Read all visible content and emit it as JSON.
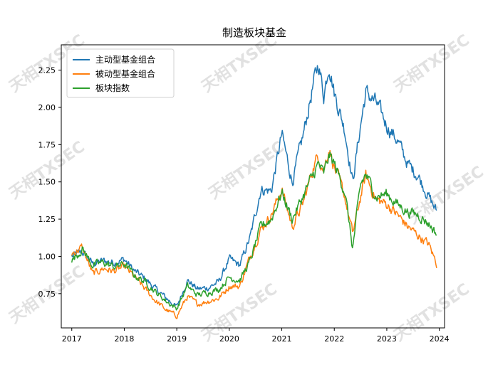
{
  "chart_data": {
    "type": "line",
    "title": "制造板块基金",
    "xlabel": "",
    "ylabel": "",
    "xlim": [
      2016.8,
      2024.1
    ],
    "ylim": [
      0.52,
      2.42
    ],
    "x_ticks": [
      2017,
      2018,
      2019,
      2020,
      2021,
      2022,
      2023,
      2024
    ],
    "x_tick_labels": [
      "2017",
      "2018",
      "2019",
      "2020",
      "2021",
      "2022",
      "2023",
      "2024"
    ],
    "y_ticks": [
      0.75,
      1.0,
      1.25,
      1.5,
      1.75,
      2.0,
      2.25
    ],
    "y_tick_labels": [
      "0.75",
      "1.00",
      "1.25",
      "1.50",
      "1.75",
      "2.00",
      "2.25"
    ],
    "grid": false,
    "legend_position": "upper-left",
    "series": [
      {
        "name": "主动型基金组合",
        "color": "#1f77b4",
        "points": [
          [
            2017.0,
            1.0
          ],
          [
            2017.2,
            1.03
          ],
          [
            2017.4,
            0.95
          ],
          [
            2017.6,
            0.97
          ],
          [
            2017.8,
            0.96
          ],
          [
            2018.0,
            0.98
          ],
          [
            2018.2,
            0.9
          ],
          [
            2018.4,
            0.85
          ],
          [
            2018.6,
            0.78
          ],
          [
            2018.8,
            0.72
          ],
          [
            2019.0,
            0.66
          ],
          [
            2019.2,
            0.84
          ],
          [
            2019.4,
            0.78
          ],
          [
            2019.6,
            0.79
          ],
          [
            2019.8,
            0.83
          ],
          [
            2020.0,
            0.98
          ],
          [
            2020.2,
            0.94
          ],
          [
            2020.4,
            1.13
          ],
          [
            2020.6,
            1.45
          ],
          [
            2020.8,
            1.44
          ],
          [
            2021.0,
            1.82
          ],
          [
            2021.2,
            1.5
          ],
          [
            2021.4,
            1.8
          ],
          [
            2021.6,
            2.15
          ],
          [
            2021.7,
            2.3
          ],
          [
            2021.8,
            2.08
          ],
          [
            2021.9,
            2.3
          ],
          [
            2022.0,
            2.1
          ],
          [
            2022.2,
            1.85
          ],
          [
            2022.35,
            1.5
          ],
          [
            2022.5,
            1.88
          ],
          [
            2022.6,
            2.1
          ],
          [
            2022.8,
            2.03
          ],
          [
            2023.0,
            1.88
          ],
          [
            2023.2,
            1.78
          ],
          [
            2023.4,
            1.62
          ],
          [
            2023.6,
            1.54
          ],
          [
            2023.8,
            1.4
          ],
          [
            2023.95,
            1.3
          ]
        ]
      },
      {
        "name": "被动型基金组合",
        "color": "#ff7f0e",
        "points": [
          [
            2017.0,
            1.02
          ],
          [
            2017.2,
            1.06
          ],
          [
            2017.4,
            0.88
          ],
          [
            2017.6,
            0.92
          ],
          [
            2017.8,
            0.9
          ],
          [
            2018.0,
            0.93
          ],
          [
            2018.2,
            0.86
          ],
          [
            2018.4,
            0.78
          ],
          [
            2018.6,
            0.7
          ],
          [
            2018.8,
            0.64
          ],
          [
            2019.0,
            0.6
          ],
          [
            2019.2,
            0.73
          ],
          [
            2019.4,
            0.68
          ],
          [
            2019.6,
            0.7
          ],
          [
            2019.8,
            0.72
          ],
          [
            2020.0,
            0.8
          ],
          [
            2020.2,
            0.8
          ],
          [
            2020.4,
            1.0
          ],
          [
            2020.6,
            1.18
          ],
          [
            2020.8,
            1.28
          ],
          [
            2021.0,
            1.45
          ],
          [
            2021.2,
            1.2
          ],
          [
            2021.4,
            1.35
          ],
          [
            2021.6,
            1.6
          ],
          [
            2021.7,
            1.68
          ],
          [
            2021.8,
            1.58
          ],
          [
            2021.9,
            1.73
          ],
          [
            2022.0,
            1.6
          ],
          [
            2022.2,
            1.4
          ],
          [
            2022.35,
            1.15
          ],
          [
            2022.5,
            1.4
          ],
          [
            2022.6,
            1.54
          ],
          [
            2022.8,
            1.38
          ],
          [
            2023.0,
            1.35
          ],
          [
            2023.2,
            1.28
          ],
          [
            2023.4,
            1.2
          ],
          [
            2023.6,
            1.14
          ],
          [
            2023.8,
            1.08
          ],
          [
            2023.95,
            0.95
          ]
        ]
      },
      {
        "name": "板块指数",
        "color": "#2ca02c",
        "points": [
          [
            2017.0,
            0.97
          ],
          [
            2017.2,
            1.05
          ],
          [
            2017.4,
            0.94
          ],
          [
            2017.6,
            0.96
          ],
          [
            2017.8,
            0.93
          ],
          [
            2018.0,
            0.95
          ],
          [
            2018.2,
            0.87
          ],
          [
            2018.4,
            0.83
          ],
          [
            2018.6,
            0.76
          ],
          [
            2018.8,
            0.7
          ],
          [
            2019.0,
            0.65
          ],
          [
            2019.2,
            0.8
          ],
          [
            2019.4,
            0.74
          ],
          [
            2019.6,
            0.76
          ],
          [
            2019.8,
            0.78
          ],
          [
            2020.0,
            0.86
          ],
          [
            2020.2,
            0.84
          ],
          [
            2020.4,
            0.97
          ],
          [
            2020.6,
            1.2
          ],
          [
            2020.8,
            1.25
          ],
          [
            2021.0,
            1.43
          ],
          [
            2021.2,
            1.25
          ],
          [
            2021.4,
            1.4
          ],
          [
            2021.6,
            1.55
          ],
          [
            2021.7,
            1.62
          ],
          [
            2021.8,
            1.55
          ],
          [
            2021.9,
            1.68
          ],
          [
            2022.0,
            1.62
          ],
          [
            2022.2,
            1.44
          ],
          [
            2022.35,
            1.05
          ],
          [
            2022.5,
            1.48
          ],
          [
            2022.6,
            1.55
          ],
          [
            2022.8,
            1.4
          ],
          [
            2023.0,
            1.42
          ],
          [
            2023.2,
            1.35
          ],
          [
            2023.4,
            1.3
          ],
          [
            2023.6,
            1.28
          ],
          [
            2023.8,
            1.22
          ],
          [
            2023.95,
            1.15
          ]
        ]
      }
    ],
    "watermark": "天相TXSEC"
  }
}
